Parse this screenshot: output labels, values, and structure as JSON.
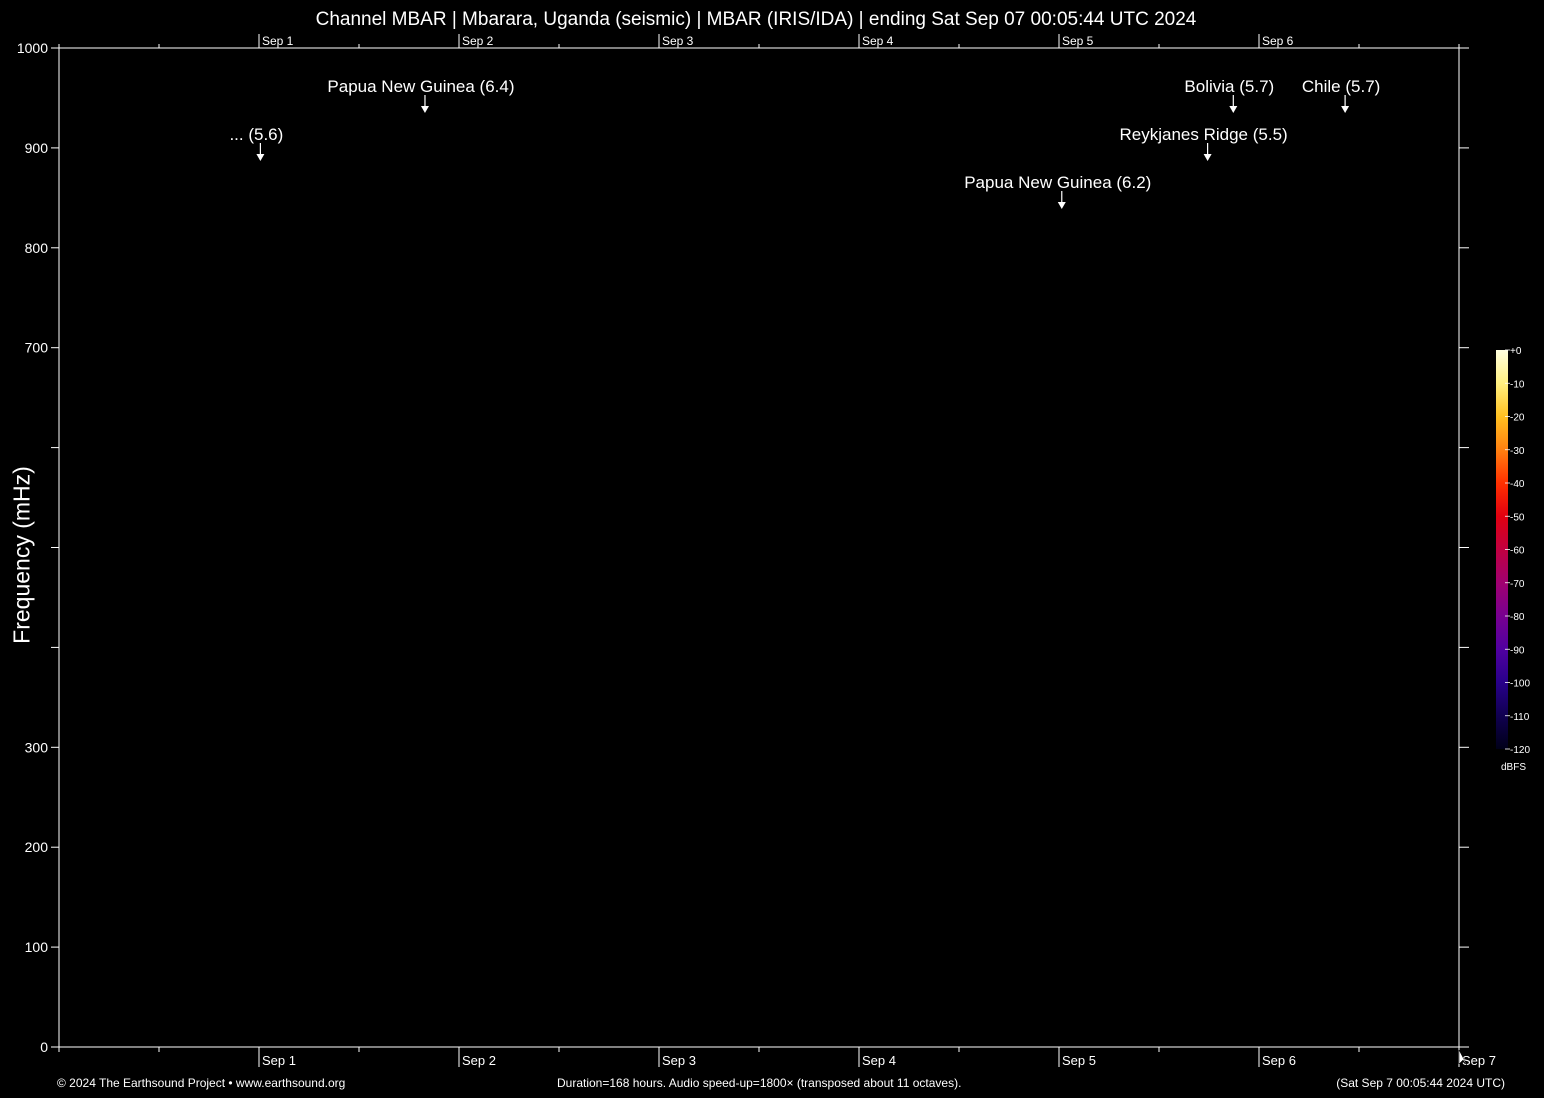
{
  "title": "Channel MBAR | Mbarara, Uganda (seismic) | MBAR (IRIS/IDA) | ending Sat Sep 07 00:05:44 UTC 2024",
  "footer": {
    "left": "© 2024 The Earthsound Project • www.earthsound.org",
    "center": "Duration=168 hours. Audio speed-up=1800× (transposed about 11 octaves).",
    "right": "(Sat Sep  7 00:05:44 2024 UTC)"
  },
  "chart_data": {
    "type": "heatmap",
    "title": "Channel MBAR | Mbarara, Uganda (seismic) | MBAR (IRIS/IDA) | ending Sat Sep 07 00:05:44 UTC 2024",
    "xlabel": "",
    "ylabel": "Frequency (mHz)",
    "ylim": [
      0,
      1000
    ],
    "y_ticks": [
      0,
      100,
      200,
      300,
      400,
      500,
      600,
      700,
      800,
      900,
      1000
    ],
    "y_tick_labels": [
      "0",
      "100",
      "200",
      "300",
      "",
      "",
      "",
      "700",
      "800",
      "900",
      "1000"
    ],
    "x_range_days": [
      0,
      7
    ],
    "x_tick_labels": [
      "Sep 1",
      "Sep 2",
      "Sep 3",
      "Sep 4",
      "Sep 5",
      "Sep 6",
      "Sep 7"
    ],
    "x_tick_days": [
      1,
      2,
      3,
      4,
      5,
      6,
      7
    ],
    "top_tick_labels": [
      "Sep 1",
      "Sep 2",
      "Sep 3",
      "Sep 4",
      "Sep 5",
      "Sep 6"
    ],
    "grid": false,
    "background_color": "#000000",
    "events": [
      {
        "label": "Papua New Guinea (6.4)",
        "time": "Sep 1 19:55",
        "tier": 1
      },
      {
        "label": "... (5.6)",
        "time": "Sep 1 00:10",
        "tier": 2
      },
      {
        "label": "Papua New Guinea (6.2)",
        "time": "Sep 5 00:20",
        "tier": 3
      },
      {
        "label": "Bolivia (5.7)",
        "time": "Sep 5 20:55",
        "tier": 1
      },
      {
        "label": "Reykjanes Ridge (5.5)",
        "time": "Sep 5 17:50",
        "tier": 2
      },
      {
        "label": "Chile (5.7)",
        "time": "Sep 6 10:20",
        "tier": 1
      }
    ],
    "colorbar": {
      "unit": "dBFS",
      "range": [
        -120,
        0
      ],
      "tick_labels": [
        "+0",
        "-10",
        "-20",
        "-30",
        "-40",
        "-50",
        "-60",
        "-70",
        "-80",
        "-90",
        "-100",
        "-110",
        "-120"
      ],
      "colors": [
        "#ffffe0",
        "#fff080",
        "#ffc020",
        "#ff8010",
        "#ff3000",
        "#e00010",
        "#c00040",
        "#a00070",
        "#780090",
        "#5000a0",
        "#28008a",
        "#100050",
        "#000018"
      ]
    }
  }
}
